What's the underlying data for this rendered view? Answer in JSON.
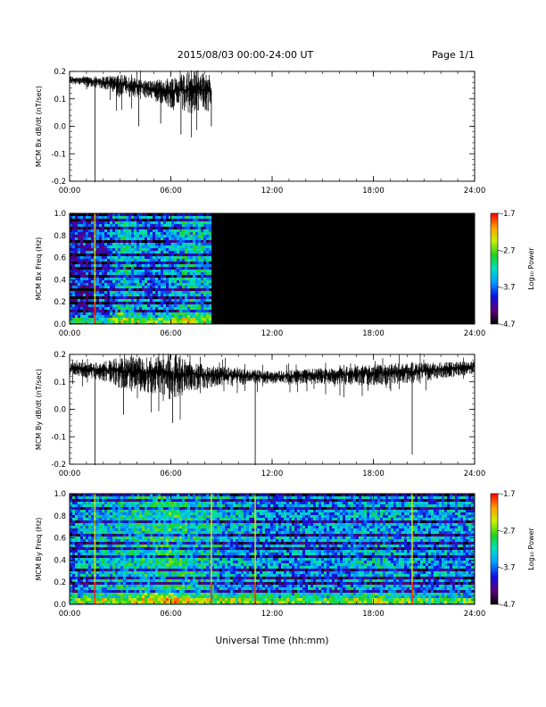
{
  "header": {
    "title": "2015/08/03  00:00-24:00 UT",
    "page": "Page 1/1"
  },
  "footer": {
    "xlabel": "Universal Time (hh:mm)"
  },
  "colors": {
    "trace": "#000000",
    "no_data": "#000000",
    "spike": "#ff2200"
  },
  "chart_data": [
    {
      "type": "line",
      "ylabel": "MCM Bx dB/dt (nT/sec)",
      "xlim": [
        0,
        24
      ],
      "ylim": [
        -0.2,
        0.2
      ],
      "x_ticks": [
        "00:00",
        "06:00",
        "12:00",
        "18:00",
        "24:00"
      ],
      "y_ticks": [
        "0.2",
        "0.1",
        "0.0",
        "-0.1",
        "-0.2"
      ],
      "data_end_hour": 8.4,
      "baseline": [
        [
          0,
          0.17
        ],
        [
          1.5,
          0.165
        ],
        [
          3,
          0.155
        ],
        [
          4.5,
          0.14
        ],
        [
          6,
          0.13
        ],
        [
          7.5,
          0.135
        ],
        [
          8.4,
          0.13
        ]
      ],
      "noise_envelope": [
        [
          0,
          0.012
        ],
        [
          2,
          0.02
        ],
        [
          3,
          0.04
        ],
        [
          4,
          0.03
        ],
        [
          5,
          0.03
        ],
        [
          6,
          0.05
        ],
        [
          7,
          0.07
        ],
        [
          8,
          0.06
        ],
        [
          8.4,
          0.06
        ]
      ],
      "spikes": [
        [
          1.5,
          -0.205
        ],
        [
          4.1,
          0.0
        ],
        [
          5.4,
          0.01
        ],
        [
          6.6,
          -0.03
        ],
        [
          8.4,
          0.0
        ]
      ]
    },
    {
      "type": "heatmap",
      "ylabel": "MCM Bx Freq (Hz)",
      "xlim": [
        0,
        24
      ],
      "ylim": [
        0,
        1.0
      ],
      "x_ticks": [
        "00:00",
        "06:00",
        "12:00",
        "18:00",
        "24:00"
      ],
      "y_ticks": [
        "1.0",
        "0.8",
        "0.6",
        "0.4",
        "0.2",
        "0.0"
      ],
      "data_end_hour": 8.4,
      "colorbar": {
        "label": "Log₁₀ Power",
        "range": [
          -4.7,
          -1.7
        ],
        "ticks": [
          "-1.7",
          "-2.7",
          "-3.7",
          "-4.7"
        ]
      },
      "harmonic_spacing_hz": 0.0625,
      "activity": [
        [
          0,
          0.2
        ],
        [
          2,
          0.25
        ],
        [
          3,
          0.45
        ],
        [
          5,
          0.3
        ],
        [
          6,
          0.35
        ],
        [
          7,
          0.45
        ],
        [
          8.4,
          0.4
        ]
      ],
      "spike_lines": [
        1.5
      ]
    },
    {
      "type": "line",
      "ylabel": "MCM By dB/dt (nT/sec)",
      "xlim": [
        0,
        24
      ],
      "ylim": [
        -0.2,
        0.2
      ],
      "x_ticks": [
        "00:00",
        "06:00",
        "12:00",
        "18:00",
        "24:00"
      ],
      "y_ticks": [
        "0.2",
        "0.1",
        "0.0",
        "-0.1",
        "-0.2"
      ],
      "data_end_hour": 24,
      "baseline": [
        [
          0,
          0.15
        ],
        [
          3,
          0.14
        ],
        [
          6,
          0.13
        ],
        [
          9,
          0.125
        ],
        [
          12,
          0.12
        ],
        [
          15,
          0.125
        ],
        [
          18,
          0.13
        ],
        [
          21,
          0.14
        ],
        [
          24,
          0.155
        ]
      ],
      "noise_envelope": [
        [
          0,
          0.02
        ],
        [
          2,
          0.03
        ],
        [
          3,
          0.05
        ],
        [
          5,
          0.06
        ],
        [
          6,
          0.08
        ],
        [
          7,
          0.05
        ],
        [
          9,
          0.03
        ],
        [
          12,
          0.02
        ],
        [
          15,
          0.025
        ],
        [
          18,
          0.035
        ],
        [
          21,
          0.03
        ],
        [
          24,
          0.02
        ]
      ],
      "spikes": [
        [
          1.5,
          -0.205
        ],
        [
          3.2,
          -0.02
        ],
        [
          6.1,
          -0.05
        ],
        [
          11,
          -0.205
        ],
        [
          20.3,
          -0.165
        ]
      ]
    },
    {
      "type": "heatmap",
      "ylabel": "MCM By Freq (Hz)",
      "xlim": [
        0,
        24
      ],
      "ylim": [
        0,
        1.0
      ],
      "x_ticks": [
        "00:00",
        "06:00",
        "12:00",
        "18:00",
        "24:00"
      ],
      "y_ticks": [
        "1.0",
        "0.8",
        "0.6",
        "0.4",
        "0.2",
        "0.0"
      ],
      "data_end_hour": 24,
      "colorbar": {
        "label": "Log₁₀ Power",
        "range": [
          -4.7,
          -1.7
        ],
        "ticks": [
          "-1.7",
          "-2.7",
          "-3.7",
          "-4.7"
        ]
      },
      "harmonic_spacing_hz": 0.0625,
      "activity": [
        [
          0,
          0.35
        ],
        [
          3,
          0.45
        ],
        [
          6,
          0.5
        ],
        [
          9,
          0.4
        ],
        [
          12,
          0.35
        ],
        [
          15,
          0.35
        ],
        [
          18,
          0.4
        ],
        [
          21,
          0.35
        ],
        [
          24,
          0.35
        ]
      ],
      "spike_lines": [
        1.5,
        8.4,
        11,
        20.3
      ]
    }
  ]
}
